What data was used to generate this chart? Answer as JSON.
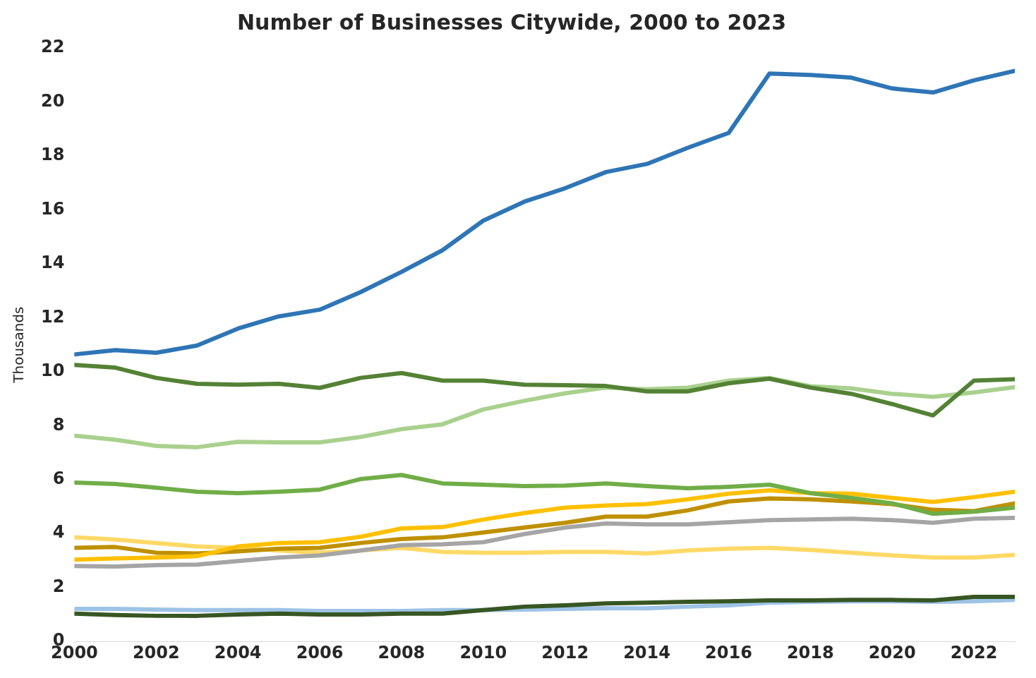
{
  "chart_data": {
    "type": "line",
    "title": "Number of Businesses Citywide, 2000 to 2023",
    "ylabel": "Thousands",
    "x": [
      2000,
      2001,
      2002,
      2003,
      2004,
      2005,
      2006,
      2007,
      2008,
      2009,
      2010,
      2011,
      2012,
      2013,
      2014,
      2015,
      2016,
      2017,
      2018,
      2019,
      2020,
      2021,
      2022,
      2023
    ],
    "xlim": [
      2000,
      2023
    ],
    "xticks": [
      2000,
      2002,
      2004,
      2006,
      2008,
      2010,
      2012,
      2014,
      2016,
      2018,
      2020,
      2022
    ],
    "ylim": [
      0,
      22
    ],
    "yticks": [
      0,
      2,
      4,
      6,
      8,
      10,
      12,
      14,
      16,
      18,
      20,
      22
    ],
    "grid": false,
    "legend": false,
    "marker": "none",
    "line_style": "solid",
    "series": [
      {
        "color": "#2e75b6",
        "values": [
          10.64,
          10.8,
          10.7,
          10.97,
          11.6,
          12.05,
          12.3,
          12.95,
          13.7,
          14.5,
          15.6,
          16.3,
          16.8,
          17.4,
          17.7,
          18.3,
          18.85,
          21.05,
          21.0,
          20.9,
          20.5,
          20.35,
          20.8,
          21.15
        ]
      },
      {
        "color": "#548235",
        "values": [
          10.25,
          10.15,
          9.77,
          9.55,
          9.52,
          9.55,
          9.4,
          9.77,
          9.95,
          9.67,
          9.67,
          9.52,
          9.5,
          9.47,
          9.27,
          9.27,
          9.57,
          9.74,
          9.41,
          9.18,
          8.8,
          8.38,
          9.67,
          9.72
        ]
      },
      {
        "color": "#a9d18e",
        "values": [
          7.63,
          7.48,
          7.25,
          7.2,
          7.4,
          7.38,
          7.38,
          7.58,
          7.87,
          8.05,
          8.6,
          8.92,
          9.2,
          9.41,
          9.35,
          9.41,
          9.67,
          9.77,
          9.46,
          9.38,
          9.18,
          9.07,
          9.23,
          9.43
        ]
      },
      {
        "color": "#70ad47",
        "values": [
          5.89,
          5.84,
          5.7,
          5.55,
          5.5,
          5.55,
          5.63,
          6.02,
          6.17,
          5.86,
          5.81,
          5.76,
          5.78,
          5.86,
          5.76,
          5.68,
          5.73,
          5.81,
          5.5,
          5.32,
          5.12,
          4.73,
          4.81,
          4.96
        ]
      },
      {
        "color": "#ffc000",
        "values": [
          3.03,
          3.08,
          3.11,
          3.16,
          3.52,
          3.65,
          3.68,
          3.88,
          4.19,
          4.24,
          4.52,
          4.76,
          4.96,
          5.04,
          5.09,
          5.27,
          5.48,
          5.6,
          5.5,
          5.48,
          5.32,
          5.17,
          5.35,
          5.55
        ]
      },
      {
        "color": "#bf9000",
        "values": [
          3.47,
          3.5,
          3.29,
          3.26,
          3.34,
          3.44,
          3.47,
          3.65,
          3.8,
          3.86,
          4.04,
          4.22,
          4.4,
          4.63,
          4.63,
          4.86,
          5.19,
          5.3,
          5.27,
          5.19,
          5.09,
          4.88,
          4.83,
          5.12
        ]
      },
      {
        "color": "#a5a5a5",
        "values": [
          2.8,
          2.78,
          2.83,
          2.85,
          2.98,
          3.11,
          3.19,
          3.37,
          3.57,
          3.6,
          3.68,
          3.98,
          4.22,
          4.37,
          4.34,
          4.34,
          4.42,
          4.5,
          4.52,
          4.55,
          4.5,
          4.4,
          4.55,
          4.58
        ]
      },
      {
        "color": "#ffd966",
        "values": [
          3.86,
          3.78,
          3.65,
          3.52,
          3.47,
          3.37,
          3.29,
          3.37,
          3.47,
          3.32,
          3.29,
          3.29,
          3.32,
          3.32,
          3.26,
          3.37,
          3.44,
          3.47,
          3.39,
          3.29,
          3.19,
          3.11,
          3.11,
          3.21
        ]
      },
      {
        "color": "#375623",
        "values": [
          1.03,
          0.98,
          0.95,
          0.95,
          1.0,
          1.03,
          1.0,
          1.0,
          1.03,
          1.03,
          1.16,
          1.29,
          1.34,
          1.41,
          1.44,
          1.47,
          1.49,
          1.52,
          1.52,
          1.54,
          1.54,
          1.52,
          1.65,
          1.65
        ]
      },
      {
        "color": "#9dc3e6",
        "values": [
          1.21,
          1.21,
          1.18,
          1.16,
          1.16,
          1.16,
          1.13,
          1.13,
          1.13,
          1.16,
          1.16,
          1.18,
          1.21,
          1.23,
          1.23,
          1.29,
          1.34,
          1.44,
          1.47,
          1.49,
          1.49,
          1.47,
          1.49,
          1.54
        ]
      }
    ]
  }
}
